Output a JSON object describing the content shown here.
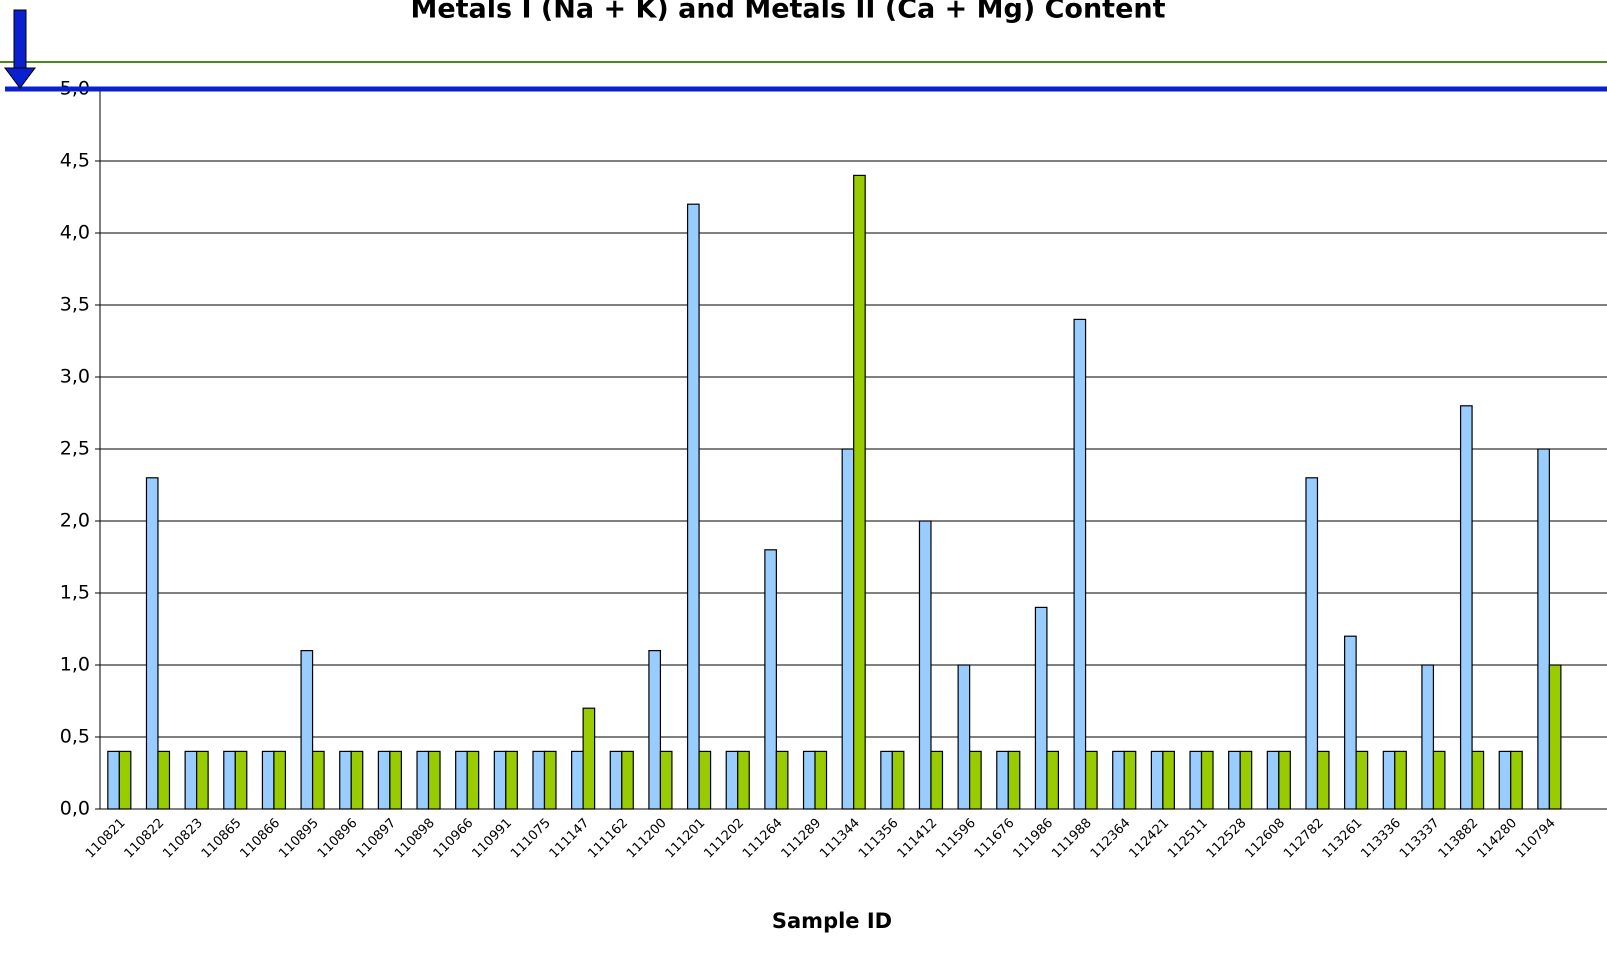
{
  "chart_data": {
    "type": "bar",
    "title": "Metals I (Na + K) and Metals II (Ca + Mg) Content",
    "x_label": "Sample ID",
    "categories": [
      "110821",
      "110822",
      "110823",
      "110865",
      "110866",
      "110895",
      "110896",
      "110897",
      "110898",
      "110966",
      "110991",
      "111075",
      "111147",
      "111162",
      "111200",
      "111201",
      "111202",
      "111264",
      "111289",
      "111344",
      "111356",
      "111412",
      "111596",
      "111676",
      "111986",
      "111988",
      "112364",
      "112421",
      "112511",
      "112528",
      "112608",
      "112782",
      "113261",
      "113336",
      "113337",
      "113882",
      "114280",
      "110794"
    ],
    "series": [
      {
        "color": "#99ccff",
        "values": [
          0.4,
          2.3,
          0.4,
          0.4,
          0.4,
          1.1,
          0.4,
          0.4,
          0.4,
          0.4,
          0.4,
          0.4,
          0.4,
          0.4,
          1.1,
          4.2,
          0.4,
          1.8,
          0.4,
          2.5,
          0.4,
          2.0,
          1.0,
          0.4,
          1.4,
          3.4,
          0.4,
          0.4,
          0.4,
          0.4,
          0.4,
          2.3,
          1.2,
          0.4,
          1.0,
          2.8,
          0.4,
          2.5
        ]
      },
      {
        "color": "#99cc00",
        "values": [
          0.4,
          0.4,
          0.4,
          0.4,
          0.4,
          0.4,
          0.4,
          0.4,
          0.4,
          0.4,
          0.4,
          0.4,
          0.7,
          0.4,
          0.4,
          0.4,
          0.4,
          0.4,
          0.4,
          4.4,
          0.4,
          0.4,
          0.4,
          0.4,
          0.4,
          0.4,
          0.4,
          0.4,
          0.4,
          0.4,
          0.4,
          0.4,
          0.4,
          0.4,
          0.4,
          0.4,
          0.4,
          1.0
        ]
      }
    ],
    "ylim": [
      0,
      5
    ],
    "yticks": [
      {
        "value": 0,
        "label": "0,0"
      },
      {
        "value": 0.5,
        "label": "0,5"
      },
      {
        "value": 1,
        "label": "1,0"
      },
      {
        "value": 1.5,
        "label": "1,5"
      },
      {
        "value": 2,
        "label": "2,0"
      },
      {
        "value": 2.5,
        "label": "2,5"
      },
      {
        "value": 3,
        "label": "3,0"
      },
      {
        "value": 3.5,
        "label": "3,5"
      },
      {
        "value": 4,
        "label": "4,0"
      },
      {
        "value": 4.5,
        "label": "4,5"
      },
      {
        "value": 5,
        "label": "5,0"
      }
    ],
    "grid": true
  }
}
